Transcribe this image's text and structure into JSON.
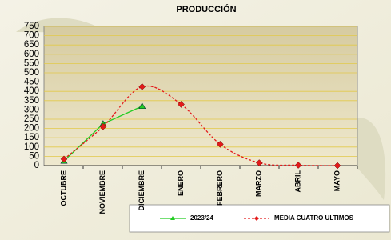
{
  "chart_data": {
    "type": "line",
    "title": "PRODUCCIÓN",
    "categories": [
      "OCTUBRE",
      "NOVIEMBRE",
      "DICIEMBRE",
      "ENERO",
      "FEBRERO",
      "MARZO",
      "ABRIL",
      "MAYO"
    ],
    "series": [
      {
        "name": "2023/24",
        "color": "#22cc22",
        "values": [
          25,
          225,
          320,
          null,
          null,
          null,
          null,
          null
        ]
      },
      {
        "name": "MEDIA CUATRO ULTIMOS",
        "color": "#e31a1a",
        "values": [
          35,
          210,
          425,
          330,
          115,
          15,
          2,
          0
        ]
      }
    ],
    "ylim": [
      0,
      750
    ],
    "yticks": [
      0,
      50,
      100,
      150,
      200,
      250,
      300,
      350,
      400,
      450,
      500,
      550,
      600,
      650,
      700,
      750
    ],
    "grid": true
  }
}
